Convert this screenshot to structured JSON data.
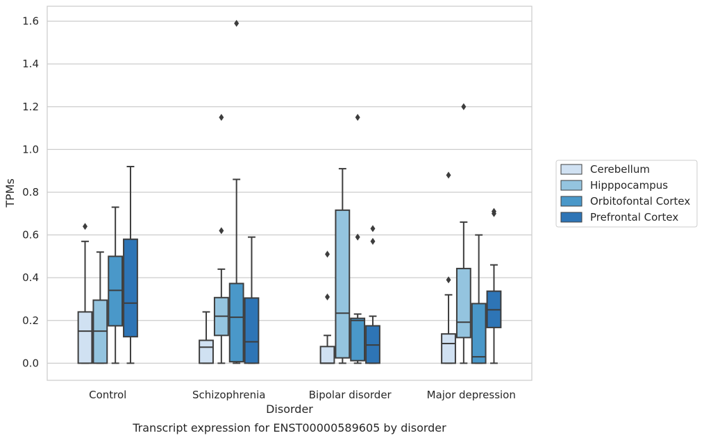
{
  "caption": "Transcript expression for ENST00000589605 by disorder",
  "chart_data": {
    "type": "box",
    "title": "",
    "xlabel": "Disorder",
    "ylabel": "TPMs",
    "ylim": [
      -0.08,
      1.67
    ],
    "yticks": [
      0.0,
      0.2,
      0.4,
      0.6,
      0.8,
      1.0,
      1.2,
      1.4,
      1.6
    ],
    "ytick_labels": [
      "0.0",
      "0.2",
      "0.4",
      "0.6",
      "0.8",
      "1.0",
      "1.2",
      "1.4",
      "1.6"
    ],
    "categories": [
      "Control",
      "Schizophrenia",
      "Bipolar disorder",
      "Major depression"
    ],
    "grid": "horizontal",
    "legend_position": "right",
    "series": [
      {
        "name": "Cerebellum",
        "color": "#d0e1f2",
        "boxes": [
          {
            "whislo": 0.0,
            "q1": 0.0,
            "med": 0.15,
            "q3": 0.24,
            "whishi": 0.57,
            "fliers": [
              0.64
            ]
          },
          {
            "whislo": 0.0,
            "q1": 0.0,
            "med": 0.075,
            "q3": 0.107,
            "whishi": 0.24,
            "fliers": []
          },
          {
            "whislo": 0.0,
            "q1": 0.0,
            "med": 0.0,
            "q3": 0.078,
            "whishi": 0.13,
            "fliers": [
              0.31,
              0.51
            ]
          },
          {
            "whislo": 0.0,
            "q1": 0.0,
            "med": 0.092,
            "q3": 0.137,
            "whishi": 0.32,
            "fliers": [
              0.39,
              0.88
            ]
          }
        ]
      },
      {
        "name": "Hipppocampus",
        "color": "#94c4df",
        "boxes": [
          {
            "whislo": 0.0,
            "q1": 0.0,
            "med": 0.15,
            "q3": 0.295,
            "whishi": 0.52,
            "fliers": []
          },
          {
            "whislo": 0.0,
            "q1": 0.13,
            "med": 0.22,
            "q3": 0.307,
            "whishi": 0.44,
            "fliers": [
              0.62,
              1.15
            ]
          },
          {
            "whislo": 0.0,
            "q1": 0.025,
            "med": 0.234,
            "q3": 0.716,
            "whishi": 0.91,
            "fliers": []
          },
          {
            "whislo": 0.0,
            "q1": 0.12,
            "med": 0.192,
            "q3": 0.443,
            "whishi": 0.66,
            "fliers": [
              1.2
            ]
          }
        ]
      },
      {
        "name": "Orbitofontal Cortex",
        "color": "#4a98c9",
        "boxes": [
          {
            "whislo": 0.0,
            "q1": 0.175,
            "med": 0.341,
            "q3": 0.5,
            "whishi": 0.73,
            "fliers": []
          },
          {
            "whislo": 0.0,
            "q1": 0.007,
            "med": 0.215,
            "q3": 0.373,
            "whishi": 0.86,
            "fliers": [
              1.59
            ]
          },
          {
            "whislo": 0.0,
            "q1": 0.012,
            "med": 0.2,
            "q3": 0.21,
            "whishi": 0.23,
            "fliers": [
              1.15,
              0.59
            ]
          },
          {
            "whislo": 0.0,
            "q1": 0.0,
            "med": 0.03,
            "q3": 0.279,
            "whishi": 0.6,
            "fliers": []
          }
        ]
      },
      {
        "name": "Prefrontal Cortex",
        "color": "#2e75b6",
        "boxes": [
          {
            "whislo": 0.0,
            "q1": 0.124,
            "med": 0.281,
            "q3": 0.58,
            "whishi": 0.92,
            "fliers": []
          },
          {
            "whislo": 0.0,
            "q1": 0.0,
            "med": 0.1,
            "q3": 0.305,
            "whishi": 0.59,
            "fliers": []
          },
          {
            "whislo": 0.0,
            "q1": 0.0,
            "med": 0.085,
            "q3": 0.175,
            "whishi": 0.22,
            "fliers": [
              0.57,
              0.63
            ]
          },
          {
            "whislo": 0.0,
            "q1": 0.167,
            "med": 0.25,
            "q3": 0.337,
            "whishi": 0.46,
            "fliers": [
              0.7,
              0.71
            ]
          }
        ]
      }
    ]
  }
}
